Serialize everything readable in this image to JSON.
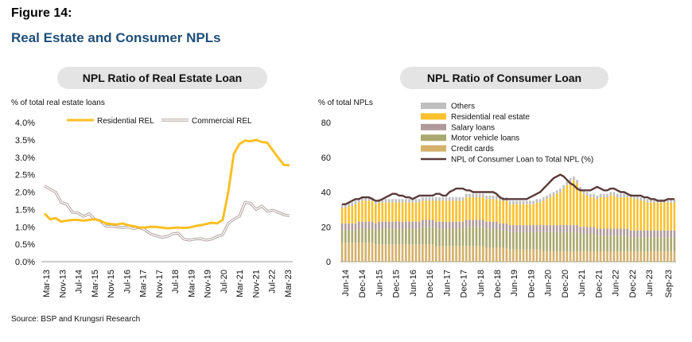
{
  "figure_label": "Figure 14:",
  "figure_title": "Real Estate and Consumer NPLs",
  "source": "Source: BSP and Krungsri Research",
  "colors": {
    "residential_rel": "#fbbf24",
    "commercial_rel": "#a89595",
    "others": "#bfbfbf",
    "residential_real_estate": "#fbc02d",
    "salary_loans": "#b09a9a",
    "motor_vehicle_loans": "#a9a86e",
    "credit_cards": "#d4b06a",
    "total_line": "#5b3a3a"
  },
  "chart_data": [
    {
      "type": "line",
      "title": "NPL Ratio of Real Estate Loan",
      "ylabel": "% of total real estate loans",
      "ylim": [
        0,
        4.0
      ],
      "y_ticks": [
        "0.0%",
        "0.5%",
        "1.0%",
        "1.5%",
        "2.0%",
        "2.5%",
        "3.0%",
        "3.5%",
        "4.0%"
      ],
      "x_ticks": [
        "Mar-13",
        "Nov-13",
        "Jul-14",
        "Mar-15",
        "Nov-15",
        "Jul-16",
        "Mar-17",
        "Nov-17",
        "Jul-18",
        "Mar-19",
        "Nov-19",
        "Jul-20",
        "Mar-21",
        "Nov-21",
        "Jul-22",
        "Mar-23"
      ],
      "legend_position": "top",
      "series": [
        {
          "name": "Residential REL",
          "values": [
            1.38,
            1.22,
            1.25,
            1.15,
            1.18,
            1.2,
            1.2,
            1.18,
            1.2,
            1.22,
            1.18,
            1.1,
            1.08,
            1.07,
            1.1,
            1.05,
            1.02,
            0.98,
            0.98,
            1.0,
            1.0,
            0.98,
            0.96,
            0.97,
            0.98,
            0.97,
            0.98,
            1.02,
            1.05,
            1.08,
            1.12,
            1.1,
            1.2,
            2.0,
            3.1,
            3.38,
            3.48,
            3.46,
            3.5,
            3.44,
            3.42,
            3.2,
            2.98,
            2.78,
            2.77
          ]
        },
        {
          "name": "Commercial REL",
          "values": [
            2.18,
            2.08,
            2.0,
            1.7,
            1.65,
            1.42,
            1.4,
            1.3,
            1.38,
            1.22,
            1.18,
            1.02,
            1.02,
            1.0,
            0.98,
            1.0,
            0.95,
            0.98,
            0.92,
            0.8,
            0.75,
            0.7,
            0.72,
            0.8,
            0.82,
            0.65,
            0.62,
            0.65,
            0.66,
            0.62,
            0.65,
            0.72,
            0.78,
            1.1,
            1.22,
            1.3,
            1.7,
            1.68,
            1.5,
            1.6,
            1.45,
            1.48,
            1.42,
            1.35,
            1.32
          ]
        }
      ]
    },
    {
      "type": "bar",
      "title": "NPL Ratio of Consumer Loan",
      "ylabel": "% of total NPLs",
      "ylim": [
        0,
        80
      ],
      "y_ticks": [
        "0",
        "20",
        "40",
        "60",
        "80"
      ],
      "x_ticks": [
        "Jun-14",
        "Dec-14",
        "Jun-15",
        "Dec-15",
        "Jun-16",
        "Dec-16",
        "Jun-17",
        "Dec-17",
        "Jun-18",
        "Dec-18",
        "Jun-19",
        "Dec-19",
        "Jun-20",
        "Dec-20",
        "Jun-21",
        "Dec-21",
        "Jun-22",
        "Dec-22",
        "Jun-23",
        "Sep-23"
      ],
      "legend_position": "top",
      "stack_order": [
        "Credit cards",
        "Motor vehicle loans",
        "Salary loans",
        "Residential real estate",
        "Others"
      ],
      "series": [
        {
          "name": "Credit cards",
          "values": [
            11,
            11,
            11,
            11,
            11,
            11,
            11,
            11,
            11,
            11,
            10,
            10,
            10,
            10,
            10,
            10,
            10,
            10,
            10,
            10,
            10,
            10,
            10,
            10,
            10,
            10,
            10,
            10,
            9,
            9,
            9,
            9,
            9,
            9,
            9,
            9,
            9,
            9,
            9,
            9,
            9,
            9,
            9,
            8,
            8,
            8,
            8,
            8,
            8,
            8,
            7,
            7,
            7,
            7,
            7,
            7,
            7,
            7,
            7,
            7,
            6,
            6,
            6,
            6,
            6,
            6,
            6,
            6,
            6,
            6,
            6,
            6,
            6,
            6,
            6,
            6,
            6,
            6,
            6,
            6,
            6,
            6,
            6,
            6,
            6,
            6,
            6,
            6,
            6,
            6,
            6,
            6,
            6,
            6,
            6,
            6,
            6,
            6,
            6,
            6
          ]
        },
        {
          "name": "Motor vehicle loans",
          "values": [
            7,
            7,
            7,
            7,
            7,
            8,
            8,
            8,
            8,
            8,
            8,
            9,
            9,
            9,
            9,
            9,
            9,
            9,
            9,
            9,
            9,
            9,
            9,
            9,
            10,
            10,
            10,
            10,
            10,
            10,
            10,
            10,
            10,
            10,
            10,
            10,
            10,
            11,
            11,
            11,
            11,
            11,
            11,
            11,
            11,
            11,
            11,
            10,
            10,
            10,
            10,
            10,
            10,
            10,
            10,
            10,
            10,
            10,
            10,
            10,
            11,
            11,
            11,
            11,
            11,
            11,
            11,
            11,
            11,
            11,
            11,
            10,
            10,
            10,
            10,
            10,
            9,
            9,
            9,
            9,
            9,
            9,
            9,
            9,
            9,
            9,
            8,
            8,
            8,
            8,
            8,
            8,
            8,
            8,
            8,
            8,
            8,
            8,
            8,
            8
          ]
        },
        {
          "name": "Salary loans",
          "values": [
            4,
            4,
            4,
            4,
            4,
            4,
            4,
            4,
            4,
            4,
            4,
            4,
            4,
            4,
            4,
            4,
            4,
            4,
            4,
            4,
            4,
            4,
            4,
            4,
            4,
            4,
            4,
            4,
            4,
            4,
            4,
            4,
            4,
            4,
            4,
            4,
            4,
            4,
            4,
            4,
            4,
            4,
            4,
            4,
            4,
            4,
            4,
            4,
            4,
            4,
            4,
            4,
            4,
            4,
            4,
            4,
            4,
            4,
            4,
            4,
            4,
            4,
            4,
            4,
            4,
            4,
            4,
            4,
            4,
            4,
            4,
            4,
            4,
            4,
            4,
            4,
            4,
            4,
            4,
            4,
            4,
            4,
            4,
            4,
            4,
            4,
            4,
            4,
            4,
            4,
            4,
            4,
            4,
            4,
            4,
            4,
            4,
            4,
            4,
            4
          ]
        },
        {
          "name": "Residential real estate",
          "values": [
            9,
            9,
            10,
            10,
            11,
            11,
            12,
            12,
            12,
            12,
            11,
            11,
            11,
            11,
            11,
            11,
            11,
            11,
            11,
            11,
            11,
            11,
            11,
            11,
            11,
            11,
            11,
            11,
            12,
            12,
            12,
            12,
            12,
            12,
            12,
            12,
            12,
            13,
            13,
            13,
            13,
            13,
            13,
            13,
            13,
            13,
            13,
            13,
            13,
            13,
            12,
            12,
            12,
            12,
            12,
            12,
            12,
            12,
            13,
            13,
            14,
            15,
            16,
            17,
            18,
            19,
            21,
            23,
            25,
            26,
            24,
            21,
            19,
            18,
            17,
            17,
            17,
            18,
            18,
            18,
            19,
            19,
            18,
            18,
            18,
            18,
            19,
            18,
            18,
            17,
            17,
            16,
            16,
            16,
            16,
            16,
            16,
            16,
            16,
            16
          ]
        },
        {
          "name": "Others",
          "values": [
            2,
            2,
            2,
            2,
            2,
            2,
            2,
            2,
            2,
            2,
            2,
            2,
            2,
            2,
            2,
            2,
            2,
            2,
            2,
            2,
            2,
            2,
            2,
            2,
            2,
            2,
            2,
            2,
            2,
            2,
            2,
            2,
            2,
            2,
            2,
            2,
            2,
            2,
            2,
            2,
            2,
            2,
            2,
            2,
            2,
            2,
            2,
            2,
            2,
            2,
            2,
            2,
            2,
            2,
            2,
            2,
            2,
            2,
            2,
            2,
            2,
            2,
            2,
            2,
            2,
            2,
            2,
            2,
            2,
            2,
            2,
            2,
            2,
            2,
            2,
            2,
            2,
            2,
            2,
            2,
            2,
            2,
            2,
            2,
            2,
            2,
            2,
            2,
            2,
            2,
            2,
            2,
            2,
            2,
            2,
            2,
            2,
            2,
            2,
            2
          ]
        },
        {
          "name": "NPL of Consumer Loan to Total NPL (%)",
          "type": "line",
          "values": [
            33,
            33,
            34,
            35,
            36,
            36,
            37,
            37,
            37,
            36,
            35,
            35,
            36,
            37,
            38,
            39,
            39,
            38,
            38,
            37,
            37,
            36,
            37,
            38,
            38,
            38,
            38,
            38,
            39,
            39,
            38,
            38,
            40,
            41,
            42,
            42,
            42,
            41,
            41,
            40,
            40,
            40,
            40,
            40,
            40,
            40,
            39,
            37,
            36,
            36,
            36,
            36,
            36,
            36,
            36,
            36,
            37,
            38,
            39,
            40,
            42,
            44,
            46,
            48,
            49,
            50,
            49,
            47,
            45,
            44,
            42,
            41,
            41,
            41,
            41,
            42,
            43,
            42,
            41,
            41,
            42,
            42,
            41,
            40,
            40,
            39,
            38,
            38,
            38,
            38,
            37,
            37,
            36,
            36,
            35,
            35,
            35,
            36,
            36,
            36
          ]
        }
      ]
    }
  ]
}
